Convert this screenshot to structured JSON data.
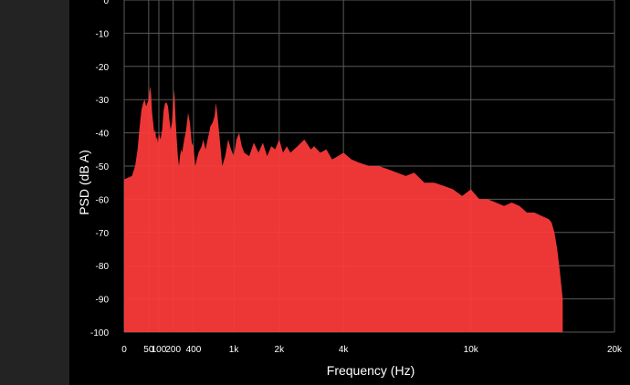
{
  "chart_data": {
    "type": "area",
    "title": "",
    "xlabel": "Frequency (Hz)",
    "ylabel": "PSD (dB A)",
    "x_scale": "sqrt",
    "xlim": [
      0,
      20000
    ],
    "ylim": [
      -100,
      0
    ],
    "x_ticks": [
      0,
      50,
      100,
      200,
      400,
      1000,
      2000,
      4000,
      10000,
      20000
    ],
    "x_tick_labels": [
      "0",
      "50",
      "100",
      "200",
      "400",
      "1k",
      "2k",
      "4k",
      "10k",
      "20k"
    ],
    "y_ticks": [
      0,
      -10,
      -20,
      -30,
      -40,
      -50,
      -60,
      -70,
      -80,
      -90,
      -100
    ],
    "y_tick_labels": [
      "0",
      "-10",
      "-20",
      "-30",
      "-40",
      "-50",
      "-60",
      "-70",
      "-80",
      "-90",
      "-100"
    ],
    "grid": true,
    "fill_color": "#ff3b3b",
    "grid_color": "#5a5a5a",
    "background_color": "#000000",
    "series": [
      {
        "x": [
          0,
          5,
          10,
          15,
          20,
          25,
          30,
          35,
          40,
          45,
          50,
          55,
          60,
          65,
          70,
          75,
          80,
          85,
          90,
          95,
          100,
          110,
          120,
          130,
          140,
          150,
          160,
          170,
          180,
          190,
          200,
          210,
          220,
          230,
          240,
          250,
          260,
          270,
          280,
          300,
          320,
          340,
          360,
          380,
          400,
          420,
          440,
          460,
          480,
          500,
          520,
          550,
          580,
          600,
          620,
          650,
          680,
          700,
          720,
          750,
          780,
          800,
          850,
          900,
          950,
          1000,
          1050,
          1100,
          1150,
          1200,
          1300,
          1400,
          1500,
          1600,
          1700,
          1800,
          1900,
          2000,
          2100,
          2200,
          2300,
          2500,
          2700,
          2900,
          3000,
          3200,
          3400,
          3600,
          3800,
          4000,
          4300,
          4600,
          5000,
          5400,
          5800,
          6200,
          6600,
          7000,
          7500,
          8000,
          8500,
          9000,
          9500,
          10000,
          10500,
          11000,
          11500,
          12000,
          12500,
          13000,
          13500,
          14000,
          14500,
          15000,
          15200,
          15400,
          15600,
          15800,
          16000
        ],
        "y": [
          -54,
          -53,
          -50,
          -45,
          -38,
          -33,
          -31,
          -30,
          -32,
          -31,
          -30,
          -26,
          -28,
          -34,
          -37,
          -40,
          -39,
          -42,
          -41,
          -43,
          -40,
          -42,
          -39,
          -33,
          -31,
          -31,
          -32,
          -36,
          -39,
          -37,
          -31,
          -27,
          -36,
          -42,
          -47,
          -50,
          -47,
          -45,
          -46,
          -42,
          -39,
          -34,
          -37,
          -43,
          -44,
          -50,
          -48,
          -46,
          -45,
          -44,
          -42,
          -45,
          -42,
          -40,
          -38,
          -37,
          -35,
          -31,
          -34,
          -40,
          -46,
          -50,
          -47,
          -42,
          -45,
          -47,
          -42,
          -40,
          -44,
          -46,
          -47,
          -43,
          -46,
          -43,
          -47,
          -44,
          -45,
          -42,
          -46,
          -44,
          -46,
          -44,
          -42,
          -45,
          -44,
          -46,
          -45,
          -48,
          -47,
          -46,
          -48,
          -49,
          -50,
          -50,
          -51,
          -52,
          -53,
          -52,
          -55,
          -55,
          -56,
          -57,
          -59,
          -57,
          -60,
          -60,
          -61,
          -62,
          -61,
          -62,
          -64,
          -64,
          -65,
          -66,
          -67,
          -70,
          -75,
          -82,
          -90
        ]
      }
    ]
  }
}
